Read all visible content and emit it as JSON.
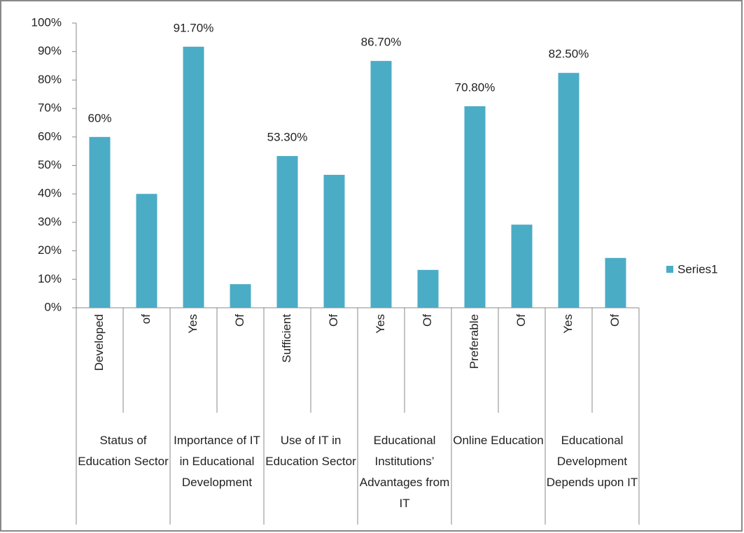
{
  "chart_data": {
    "type": "bar",
    "categories": [
      "Developed",
      "of",
      "Yes",
      "Of",
      "Sufficient",
      "Of",
      "Yes",
      "Of",
      "Preferable",
      "Of",
      "Yes",
      "Of"
    ],
    "groups": [
      "Status of Education Sector",
      "Importance of IT in Educational Development",
      "Use of IT in Education Sector",
      "Educational Institutions’ Advantages from IT",
      "Online Education",
      "Educational Development Depends upon IT"
    ],
    "series": [
      {
        "name": "Series1",
        "color": "#4bacc6",
        "values": [
          60,
          40,
          91.7,
          8.3,
          53.3,
          46.7,
          86.7,
          13.3,
          70.8,
          29.2,
          82.5,
          17.5
        ],
        "value_labels": [
          "60%",
          null,
          "91.70%",
          null,
          "53.30%",
          null,
          "86.70%",
          null,
          "70.80%",
          null,
          "82.50%",
          null
        ]
      }
    ],
    "ylim": [
      0,
      100
    ],
    "yticks": [
      {
        "value": 0,
        "label": "0%"
      },
      {
        "value": 10,
        "label": "10%"
      },
      {
        "value": 20,
        "label": "20%"
      },
      {
        "value": 30,
        "label": "30%"
      },
      {
        "value": 40,
        "label": "40%"
      },
      {
        "value": 50,
        "label": "50%"
      },
      {
        "value": 60,
        "label": "60%"
      },
      {
        "value": 70,
        "label": "70%"
      },
      {
        "value": 80,
        "label": "80%"
      },
      {
        "value": 90,
        "label": "90%"
      },
      {
        "value": 100,
        "label": "100%"
      }
    ],
    "grid": false,
    "legend": "right"
  }
}
